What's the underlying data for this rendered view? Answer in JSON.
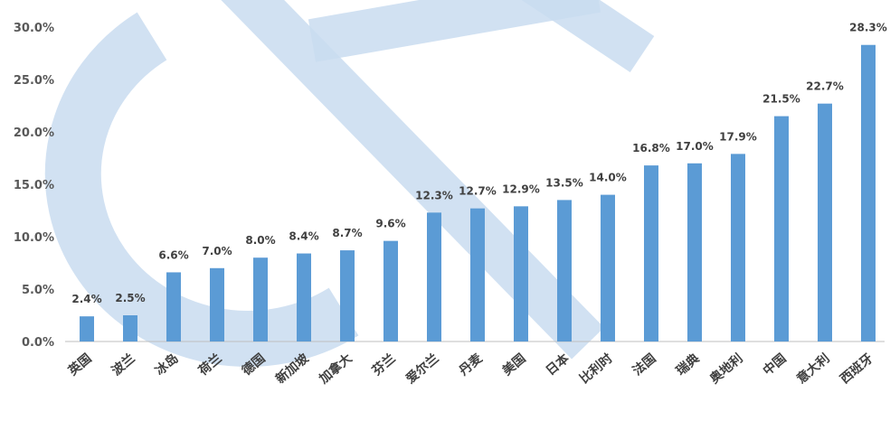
{
  "chart_data": {
    "type": "bar",
    "categories": [
      "英国",
      "波兰",
      "冰岛",
      "荷兰",
      "德国",
      "新加坡",
      "加拿大",
      "芬兰",
      "爱尔兰",
      "丹麦",
      "美国",
      "日本",
      "比利时",
      "法国",
      "瑞典",
      "奥地利",
      "中国",
      "意大利",
      "西班牙"
    ],
    "values": [
      2.4,
      2.5,
      6.6,
      7.0,
      8.0,
      8.4,
      8.7,
      9.6,
      12.3,
      12.7,
      12.9,
      13.5,
      14.0,
      16.8,
      17.0,
      17.9,
      21.5,
      22.7,
      28.3
    ],
    "data_labels": [
      "2.4%",
      "2.5%",
      "6.6%",
      "7.0%",
      "8.0%",
      "8.4%",
      "8.7%",
      "9.6%",
      "12.3%",
      "12.7%",
      "12.9%",
      "13.5%",
      "14.0%",
      "16.8%",
      "17.0%",
      "17.9%",
      "21.5%",
      "22.7%",
      "28.3%"
    ],
    "y_ticks": [
      0,
      5,
      10,
      15,
      20,
      25,
      30
    ],
    "y_tick_labels": [
      "0.0%",
      "5.0%",
      "10.0%",
      "15.0%",
      "20.0%",
      "25.0%",
      "30.0%"
    ],
    "ylim": [
      0,
      30
    ],
    "title": "",
    "xlabel": "",
    "ylabel": "",
    "grid": false,
    "legend": "none",
    "bar_color": "#5b9bd5",
    "axis_color": "#bfbfbf",
    "watermark_color": "#c9dcf0"
  }
}
